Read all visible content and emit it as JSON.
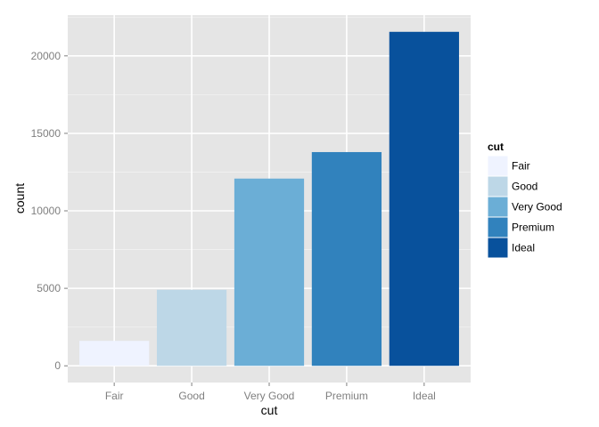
{
  "chart_data": {
    "type": "bar",
    "categories": [
      "Fair",
      "Good",
      "Very Good",
      "Premium",
      "Ideal"
    ],
    "values": [
      1610,
      4906,
      12082,
      13791,
      21551
    ],
    "colors": [
      "#eff3ff",
      "#bdd7e7",
      "#6baed6",
      "#3182bd",
      "#08519c"
    ],
    "xlabel": "cut",
    "ylabel": "count",
    "ylim": [
      -1078,
      22629
    ],
    "yticks": [
      0,
      5000,
      10000,
      15000,
      20000
    ],
    "ytick_labels": [
      "0",
      "5000",
      "10000",
      "15000",
      "20000"
    ],
    "grid": true,
    "panel_background": "#e5e5e5",
    "grid_color": "#ffffff",
    "legend": {
      "title": "cut",
      "placement": "right",
      "entries": [
        "Fair",
        "Good",
        "Very Good",
        "Premium",
        "Ideal"
      ]
    }
  }
}
